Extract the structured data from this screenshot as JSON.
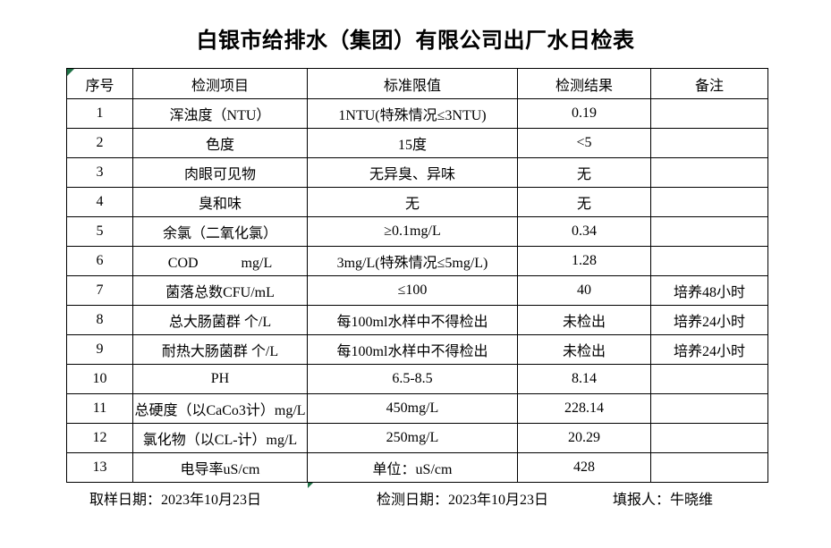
{
  "title": "白银市给排水（集团）有限公司出厂水日检表",
  "colors": {
    "grid": "#000000",
    "text": "#000000",
    "page_bg": "#ffffff",
    "error_indicator_green": "#1f7246"
  },
  "icons": {
    "error_indicator_top_left": "excel-green-triangle",
    "error_indicator_bottom": "excel-green-triangle"
  },
  "table": {
    "headers": {
      "no": "序号",
      "item": "检测项目",
      "standard": "标准限值",
      "result": "检测结果",
      "note": "备注"
    },
    "rows": [
      {
        "no": "1",
        "item": "浑浊度（NTU）",
        "standard": "1NTU(特殊情况≤3NTU)",
        "result": "0.19",
        "note": ""
      },
      {
        "no": "2",
        "item": "色度",
        "standard": "15度",
        "result": "<5",
        "note": ""
      },
      {
        "no": "3",
        "item": "肉眼可见物",
        "standard": "无异臭、异味",
        "result": "无",
        "note": ""
      },
      {
        "no": "4",
        "item": "臭和味",
        "standard": "无",
        "result": "无",
        "note": ""
      },
      {
        "no": "5",
        "item": "余氯（二氧化氯）",
        "standard": "≥0.1mg/L",
        "result": "0.34",
        "note": ""
      },
      {
        "no": "6",
        "item": "COD　　　mg/L",
        "standard": "3mg/L(特殊情况≤5mg/L)",
        "result": "1.28",
        "note": ""
      },
      {
        "no": "7",
        "item": "菌落总数CFU/mL",
        "standard": "≤100",
        "result": "40",
        "note": "培养48小时"
      },
      {
        "no": "8",
        "item": "总大肠菌群 个/L",
        "standard": "每100ml水样中不得检出",
        "result": "未检出",
        "note": "培养24小时"
      },
      {
        "no": "9",
        "item": "耐热大肠菌群 个/L",
        "standard": "每100ml水样中不得检出",
        "result": "未检出",
        "note": "培养24小时"
      },
      {
        "no": "10",
        "item": "PH",
        "standard": "6.5-8.5",
        "result": "8.14",
        "note": ""
      },
      {
        "no": "11",
        "item": "总硬度（以CaCo3计）mg/L",
        "standard": "450mg/L",
        "result": "228.14",
        "note": ""
      },
      {
        "no": "12",
        "item": "氯化物（以CL-计）mg/L",
        "standard": "250mg/L",
        "result": "20.29",
        "note": ""
      },
      {
        "no": "13",
        "item": "电导率uS/cm",
        "standard": "单位：uS/cm",
        "result": "428",
        "note": ""
      }
    ]
  },
  "footer": {
    "sampling_date": "取样日期：2023年10月23日",
    "test_date": "检测日期：2023年10月23日",
    "reporter": "填报人：牛晓维"
  }
}
